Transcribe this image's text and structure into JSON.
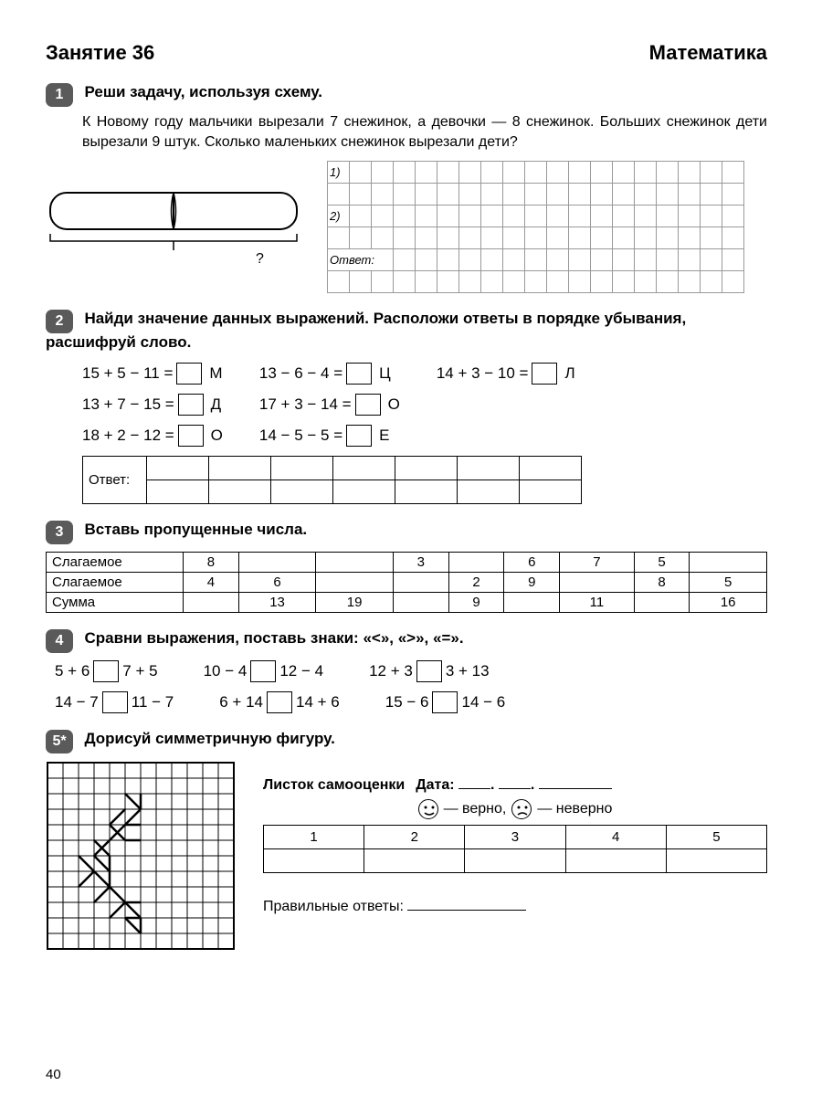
{
  "header": {
    "lesson": "Занятие 36",
    "subject": "Математика"
  },
  "task1": {
    "num": "1",
    "title": "Реши задачу, используя схему.",
    "text": "К Новому году мальчики вырезали 7 снежинок, а девочки — 8 снежинок. Больших снежинок дети вырезали 9 штук. Сколько маленьких снежинок вырезали дети?",
    "diagram_q": "?",
    "grid": {
      "cols": 19,
      "rows": 6,
      "labels": {
        "r1": "1)",
        "r3": "2)",
        "r5": "Ответ:"
      }
    }
  },
  "task2": {
    "num": "2",
    "title": "Найди значение данных выражений. Расположи ответы в порядке убывания, расшифруй слово.",
    "col1": [
      {
        "expr": "15 + 5 − 11 =",
        "letter": "М"
      },
      {
        "expr": "13 + 7 − 15 =",
        "letter": "Д"
      },
      {
        "expr": "18 + 2 − 12 =",
        "letter": "О"
      }
    ],
    "col2": [
      {
        "expr": "13 − 6 − 4 =",
        "letter": "Ц"
      },
      {
        "expr": "17 + 3 − 14 =",
        "letter": "О"
      },
      {
        "expr": "14 − 5 − 5 =",
        "letter": "Е"
      }
    ],
    "col3": [
      {
        "expr": "14 + 3 − 10 =",
        "letter": "Л"
      }
    ],
    "answer_label": "Ответ:",
    "answer_cols": 7
  },
  "task3": {
    "num": "3",
    "title": "Вставь пропущенные числа.",
    "rows": [
      {
        "label": "Слагаемое",
        "cells": [
          "8",
          "",
          "",
          "3",
          "",
          "6",
          "7",
          "5",
          ""
        ]
      },
      {
        "label": "Слагаемое",
        "cells": [
          "4",
          "6",
          "",
          "",
          "2",
          "9",
          "",
          "8",
          "5"
        ]
      },
      {
        "label": "Сумма",
        "cells": [
          "",
          "13",
          "19",
          "",
          "9",
          "",
          "11",
          "",
          "16"
        ]
      }
    ]
  },
  "task4": {
    "num": "4",
    "title": "Сравни выражения, поставь знаки: «<», «>», «=».",
    "rows": [
      [
        {
          "l": "5 + 6",
          "r": "7 + 5"
        },
        {
          "l": "10 − 4",
          "r": "12 − 4"
        },
        {
          "l": "12 + 3",
          "r": "3 + 13"
        }
      ],
      [
        {
          "l": "14 − 7",
          "r": "11 − 7"
        },
        {
          "l": "6 + 14",
          "r": "14 + 6"
        },
        {
          "l": "15 − 6",
          "r": "14 − 6"
        }
      ]
    ]
  },
  "task5": {
    "num": "5*",
    "title": "Дорисуй симметричную фигуру.",
    "grid": {
      "size": 12,
      "cell": 17
    },
    "pattern_lines": [
      [
        5,
        2,
        6,
        3
      ],
      [
        6,
        3,
        5,
        4
      ],
      [
        5,
        3,
        4,
        4
      ],
      [
        4,
        4,
        5,
        5
      ],
      [
        5,
        4,
        4,
        5
      ],
      [
        3,
        5,
        4,
        6
      ],
      [
        4,
        5,
        3,
        6
      ],
      [
        3,
        6,
        4,
        7
      ],
      [
        2,
        6,
        3,
        7
      ],
      [
        3,
        7,
        2,
        8
      ],
      [
        3,
        7,
        4,
        8
      ],
      [
        4,
        8,
        3,
        9
      ],
      [
        4,
        8,
        5,
        9
      ],
      [
        5,
        9,
        4,
        10
      ],
      [
        5,
        9,
        6,
        10
      ],
      [
        5,
        10,
        6,
        11
      ],
      [
        6,
        2,
        6,
        3
      ],
      [
        5,
        4,
        6,
        4
      ],
      [
        5,
        5,
        6,
        5
      ],
      [
        5,
        9,
        6,
        9
      ],
      [
        5,
        10,
        6,
        10
      ],
      [
        4,
        6,
        4,
        8
      ],
      [
        6,
        10,
        6,
        11
      ]
    ],
    "self": {
      "title": "Листок самооценки",
      "date_label": "Дата:",
      "legend_ok": "— верно,",
      "legend_bad": "— неверно",
      "cols": [
        "1",
        "2",
        "3",
        "4",
        "5"
      ],
      "answers_label": "Правильные ответы:"
    }
  },
  "page_number": "40"
}
